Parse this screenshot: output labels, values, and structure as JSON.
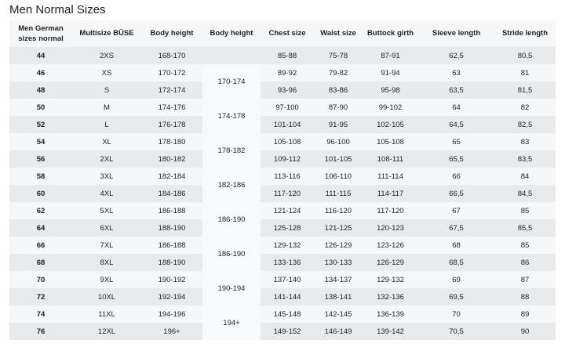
{
  "title": "Men Normal Sizes",
  "columns": [
    "Men German sizes normal",
    "Multisize BÜSE",
    "Body height",
    "Body height",
    "Chest size",
    "Waist size",
    "Buttock girth",
    "Sleeve length",
    "Stride length"
  ],
  "body_height_groups": [
    {
      "value": "",
      "rows": 1
    },
    {
      "value": "170-174",
      "rows": 2
    },
    {
      "value": "174-178",
      "rows": 2
    },
    {
      "value": "178-182",
      "rows": 2
    },
    {
      "value": "182-186",
      "rows": 2
    },
    {
      "value": "186-190",
      "rows": 2
    },
    {
      "value": "186-190",
      "rows": 2
    },
    {
      "value": "190-194",
      "rows": 2
    },
    {
      "value": "194+",
      "rows": 2
    }
  ],
  "rows": [
    {
      "size": "44",
      "multisize": "2XS",
      "body_height": "168-170",
      "chest": "85-88",
      "waist": "75-78",
      "buttock": "87-91",
      "sleeve": "62,5",
      "stride": "80,5"
    },
    {
      "size": "46",
      "multisize": "XS",
      "body_height": "170-172",
      "chest": "89-92",
      "waist": "79-82",
      "buttock": "91-94",
      "sleeve": "63",
      "stride": "81"
    },
    {
      "size": "48",
      "multisize": "S",
      "body_height": "172-174",
      "chest": "93-96",
      "waist": "83-86",
      "buttock": "95-98",
      "sleeve": "63,5",
      "stride": "81,5"
    },
    {
      "size": "50",
      "multisize": "M",
      "body_height": "174-176",
      "chest": "97-100",
      "waist": "87-90",
      "buttock": "99-102",
      "sleeve": "64",
      "stride": "82"
    },
    {
      "size": "52",
      "multisize": "L",
      "body_height": "176-178",
      "chest": "101-104",
      "waist": "91-95",
      "buttock": "102-105",
      "sleeve": "64,5",
      "stride": "82,5"
    },
    {
      "size": "54",
      "multisize": "XL",
      "body_height": "178-180",
      "chest": "105-108",
      "waist": "96-100",
      "buttock": "105-108",
      "sleeve": "65",
      "stride": "83"
    },
    {
      "size": "56",
      "multisize": "2XL",
      "body_height": "180-182",
      "chest": "109-112",
      "waist": "101-105",
      "buttock": "108-111",
      "sleeve": "65,5",
      "stride": "83,5"
    },
    {
      "size": "58",
      "multisize": "3XL",
      "body_height": "182-184",
      "chest": "113-116",
      "waist": "106-110",
      "buttock": "111-114",
      "sleeve": "66",
      "stride": "84"
    },
    {
      "size": "60",
      "multisize": "4XL",
      "body_height": "184-186",
      "chest": "117-120",
      "waist": "111-115",
      "buttock": "114-117",
      "sleeve": "66,5",
      "stride": "84,5"
    },
    {
      "size": "62",
      "multisize": "5XL",
      "body_height": "186-188",
      "chest": "121-124",
      "waist": "116-120",
      "buttock": "117-120",
      "sleeve": "67",
      "stride": "85"
    },
    {
      "size": "64",
      "multisize": "6XL",
      "body_height": "188-190",
      "chest": "125-128",
      "waist": "121-125",
      "buttock": "120-123",
      "sleeve": "67,5",
      "stride": "85,5"
    },
    {
      "size": "66",
      "multisize": "7XL",
      "body_height": "186-188",
      "chest": "129-132",
      "waist": "126-129",
      "buttock": "123-126",
      "sleeve": "68",
      "stride": "85"
    },
    {
      "size": "68",
      "multisize": "8XL",
      "body_height": "188-190",
      "chest": "133-136",
      "waist": "130-133",
      "buttock": "126-129",
      "sleeve": "68,5",
      "stride": "86"
    },
    {
      "size": "70",
      "multisize": "9XL",
      "body_height": "190-192",
      "chest": "137-140",
      "waist": "134-137",
      "buttock": "129-132",
      "sleeve": "69",
      "stride": "87"
    },
    {
      "size": "72",
      "multisize": "10XL",
      "body_height": "192-194",
      "chest": "141-144",
      "waist": "138-141",
      "buttock": "132-136",
      "sleeve": "69,5",
      "stride": "88"
    },
    {
      "size": "74",
      "multisize": "11XL",
      "body_height": "194-196",
      "chest": "145-148",
      "waist": "142-145",
      "buttock": "136-139",
      "sleeve": "70",
      "stride": "89"
    },
    {
      "size": "76",
      "multisize": "12XL",
      "body_height": "196+",
      "chest": "149-152",
      "waist": "146-149",
      "buttock": "139-142",
      "sleeve": "70,5",
      "stride": "90"
    }
  ]
}
